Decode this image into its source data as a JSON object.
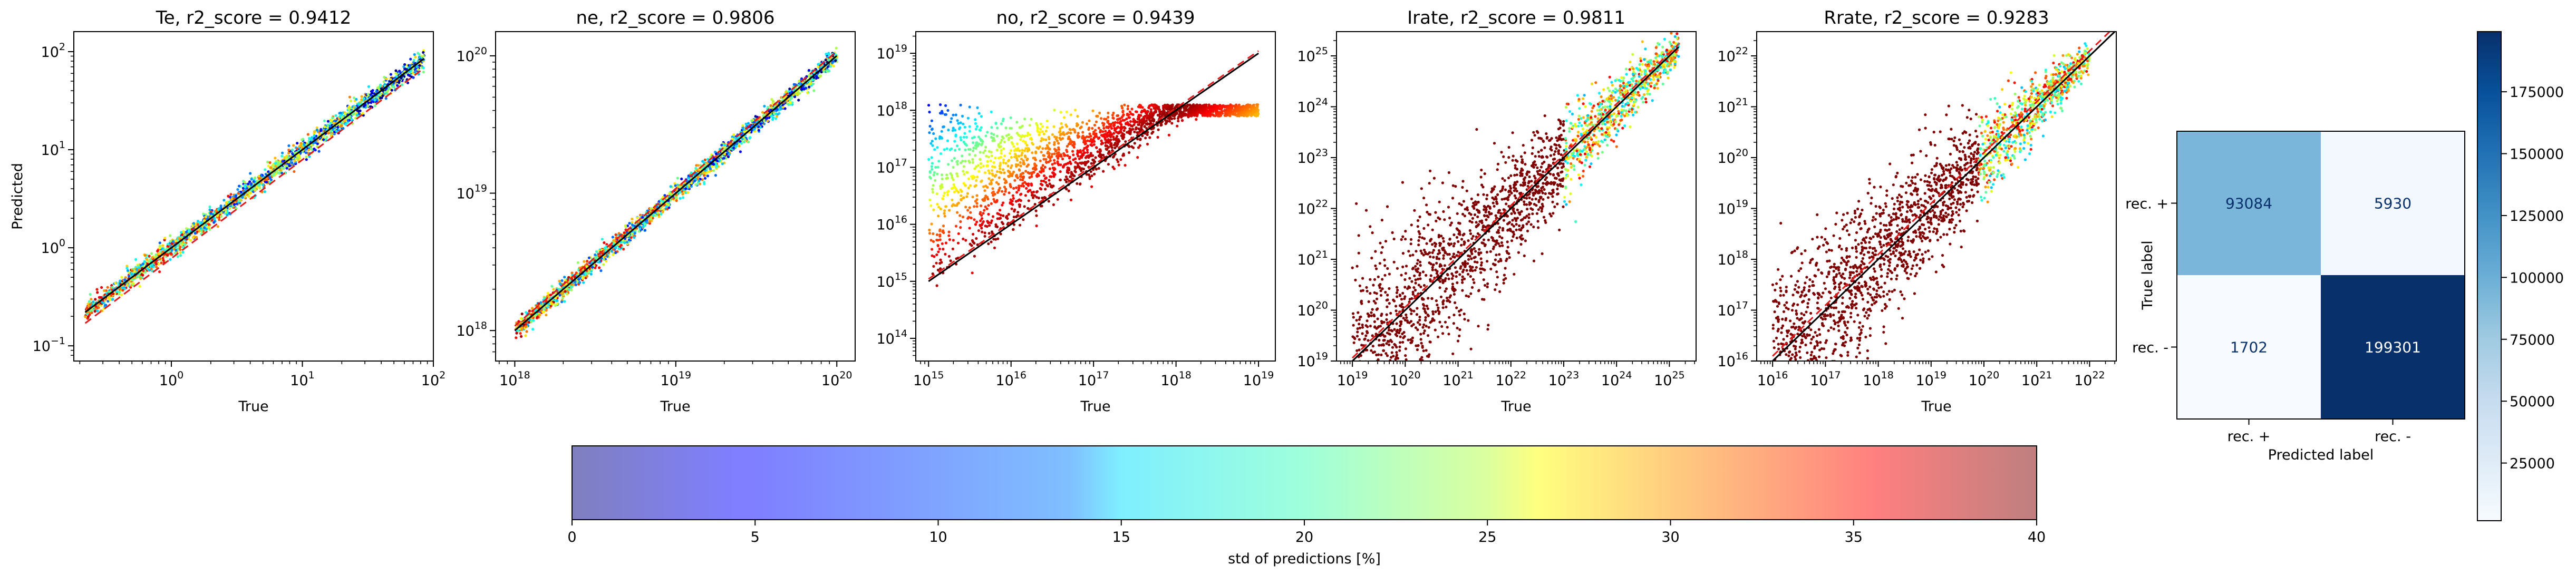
{
  "chart_data": [
    {
      "type": "scatter",
      "title": "Te, r2_score = 0.9412",
      "xlabel": "True",
      "ylabel": "Predicted",
      "scale": "log",
      "xlim": [
        0.18,
        100
      ],
      "ylim": [
        0.07,
        160
      ],
      "x_ticks": [
        {
          "v": 1,
          "b": "10",
          "e": "0"
        },
        {
          "v": 10,
          "b": "10",
          "e": "1"
        },
        {
          "v": 100,
          "b": "10",
          "e": "2"
        }
      ],
      "y_ticks": [
        {
          "v": 0.1,
          "b": "10",
          "e": "−1"
        },
        {
          "v": 1,
          "b": "10",
          "e": "0"
        },
        {
          "v": 10,
          "b": "10",
          "e": "1"
        },
        {
          "v": 100,
          "b": "10",
          "e": "2"
        }
      ],
      "data_range": [
        0.22,
        85
      ],
      "spread": 0.09,
      "solid_line": {
        "from": [
          0.22,
          0.22
        ],
        "to": [
          85,
          85
        ]
      },
      "dashed_line": {
        "from": [
          0.22,
          0.17
        ],
        "to": [
          85,
          68
        ]
      }
    },
    {
      "type": "scatter",
      "title": "ne, r2_score = 0.9806",
      "xlabel": "True",
      "ylabel": "",
      "scale": "log",
      "xlim": [
        7.6e+17,
        1.3e+20
      ],
      "ylim": [
        6e+17,
        1.5e+20
      ],
      "x_ticks": [
        {
          "v": 1e+18,
          "b": "10",
          "e": "18"
        },
        {
          "v": 1e+19,
          "b": "10",
          "e": "19"
        },
        {
          "v": 1e+20,
          "b": "10",
          "e": "20"
        }
      ],
      "y_ticks": [
        {
          "v": 1e+18,
          "b": "10",
          "e": "18"
        },
        {
          "v": 1e+19,
          "b": "10",
          "e": "19"
        },
        {
          "v": 1e+20,
          "b": "10",
          "e": "20"
        }
      ],
      "data_range": [
        1e+18,
        1e+20
      ],
      "spread": 0.06,
      "solid_line": {
        "from": [
          1e+18,
          1e+18
        ],
        "to": [
          1e+20,
          1e+20
        ]
      },
      "dashed_line": {
        "from": [
          1e+18,
          1.08e+18
        ],
        "to": [
          1e+20,
          1.08e+20
        ]
      }
    },
    {
      "type": "scatter",
      "title": "no, r2_score = 0.9439",
      "xlabel": "True",
      "ylabel": "",
      "scale": "log",
      "xlim": [
        700000000000000.0,
        1.6e+19
      ],
      "ylim": [
        40000000000000.0,
        2.4e+19
      ],
      "x_ticks": [
        {
          "v": 1000000000000000.0,
          "b": "10",
          "e": "15"
        },
        {
          "v": 1e+16,
          "b": "10",
          "e": "16"
        },
        {
          "v": 1e+17,
          "b": "10",
          "e": "17"
        },
        {
          "v": 1e+18,
          "b": "10",
          "e": "18"
        },
        {
          "v": 1e+19,
          "b": "10",
          "e": "19"
        }
      ],
      "y_ticks": [
        {
          "v": 100000000000000.0,
          "b": "10",
          "e": "14"
        },
        {
          "v": 1000000000000000.0,
          "b": "10",
          "e": "15"
        },
        {
          "v": 1e+16,
          "b": "10",
          "e": "16"
        },
        {
          "v": 1e+17,
          "b": "10",
          "e": "17"
        },
        {
          "v": 1e+18,
          "b": "10",
          "e": "18"
        },
        {
          "v": 1e+19,
          "b": "10",
          "e": "19"
        }
      ],
      "data_range": [
        1000000000000000.0,
        1e+19
      ],
      "spread": 0.2,
      "solid_line": {
        "from": [
          1000000000000000.0,
          1000000000000000.0
        ],
        "to": [
          1e+19,
          1e+19
        ]
      },
      "dashed_line": {
        "from": [
          1000000000000000.0,
          1100000000000000.0
        ],
        "to": [
          1e+19,
          1.1e+19
        ]
      }
    },
    {
      "type": "scatter",
      "title": "Irate, r2_score = 0.9811",
      "xlabel": "True",
      "ylabel": "",
      "scale": "log",
      "xlim": [
        5e+18,
        3.2e+25
      ],
      "ylim": [
        1e+19,
        3e+25
      ],
      "x_ticks": [
        {
          "v": 1e+19,
          "b": "10",
          "e": "19"
        },
        {
          "v": 1e+20,
          "b": "10",
          "e": "20"
        },
        {
          "v": 1e+21,
          "b": "10",
          "e": "21"
        },
        {
          "v": 1e+22,
          "b": "10",
          "e": "22"
        },
        {
          "v": 1e+23,
          "b": "10",
          "e": "23"
        },
        {
          "v": 1e+24,
          "b": "10",
          "e": "24"
        },
        {
          "v": 1e+25,
          "b": "10",
          "e": "25"
        }
      ],
      "y_ticks": [
        {
          "v": 1e+19,
          "b": "10",
          "e": "19"
        },
        {
          "v": 1e+20,
          "b": "10",
          "e": "20"
        },
        {
          "v": 1e+21,
          "b": "10",
          "e": "21"
        },
        {
          "v": 1e+22,
          "b": "10",
          "e": "22"
        },
        {
          "v": 1e+23,
          "b": "10",
          "e": "23"
        },
        {
          "v": 1e+24,
          "b": "10",
          "e": "24"
        },
        {
          "v": 1e+25,
          "b": "10",
          "e": "25"
        }
      ],
      "data_range": [
        1e+19,
        1.5e+25
      ],
      "spread": 0.35,
      "solid_line": {
        "from": [
          1e+19,
          1e+19
        ],
        "to": [
          1.5e+25,
          1.5e+25
        ]
      },
      "dashed_line": {
        "from": [
          1e+19,
          1.15e+19
        ],
        "to": [
          1.5e+25,
          1.7e+25
        ]
      }
    },
    {
      "type": "scatter",
      "title": "Rrate, r2_score = 0.9283",
      "xlabel": "True",
      "ylabel": "",
      "scale": "log",
      "xlim": [
        5000000000000000.0,
        3.2e+22
      ],
      "ylim": [
        1e+16,
        3e+22
      ],
      "x_ticks": [
        {
          "v": 1e+16,
          "b": "10",
          "e": "16"
        },
        {
          "v": 1e+17,
          "b": "10",
          "e": "17"
        },
        {
          "v": 1e+18,
          "b": "10",
          "e": "18"
        },
        {
          "v": 1e+19,
          "b": "10",
          "e": "19"
        },
        {
          "v": 1e+20,
          "b": "10",
          "e": "20"
        },
        {
          "v": 1e+21,
          "b": "10",
          "e": "21"
        },
        {
          "v": 1e+22,
          "b": "10",
          "e": "22"
        }
      ],
      "y_ticks": [
        {
          "v": 1e+16,
          "b": "10",
          "e": "16"
        },
        {
          "v": 1e+17,
          "b": "10",
          "e": "17"
        },
        {
          "v": 1e+18,
          "b": "10",
          "e": "18"
        },
        {
          "v": 1e+19,
          "b": "10",
          "e": "19"
        },
        {
          "v": 1e+20,
          "b": "10",
          "e": "20"
        },
        {
          "v": 1e+21,
          "b": "10",
          "e": "21"
        },
        {
          "v": 1e+22,
          "b": "10",
          "e": "22"
        }
      ],
      "data_range": [
        1e+16,
        1e+22
      ],
      "spread": 0.35,
      "solid_line": {
        "from": [
          1e+16,
          1e+16
        ],
        "to": [
          3e+22,
          3e+22
        ]
      },
      "dashed_line": {
        "from": [
          1e+16,
          1.25e+16
        ],
        "to": [
          3e+22,
          3.75e+22
        ]
      }
    },
    {
      "type": "heatmap",
      "title": "",
      "xlabel": "Predicted label",
      "ylabel": "True label",
      "rows": [
        "rec. +",
        "rec. -"
      ],
      "cols": [
        "rec. +",
        "rec. -"
      ],
      "values": [
        [
          93084,
          5930
        ],
        [
          1702,
          199301
        ]
      ],
      "cmap": "Blues",
      "colorbar_ticks": [
        "25000",
        "50000",
        "75000",
        "100000",
        "125000",
        "150000",
        "175000"
      ],
      "colorbar_range": [
        1702,
        199301
      ]
    }
  ],
  "colorbar": {
    "label": "std of predictions [%]",
    "ticks": [
      "0",
      "5",
      "10",
      "15",
      "20",
      "25",
      "30",
      "35",
      "40"
    ],
    "range": [
      0,
      40
    ],
    "cmap": "jet",
    "alpha": 0.5
  }
}
